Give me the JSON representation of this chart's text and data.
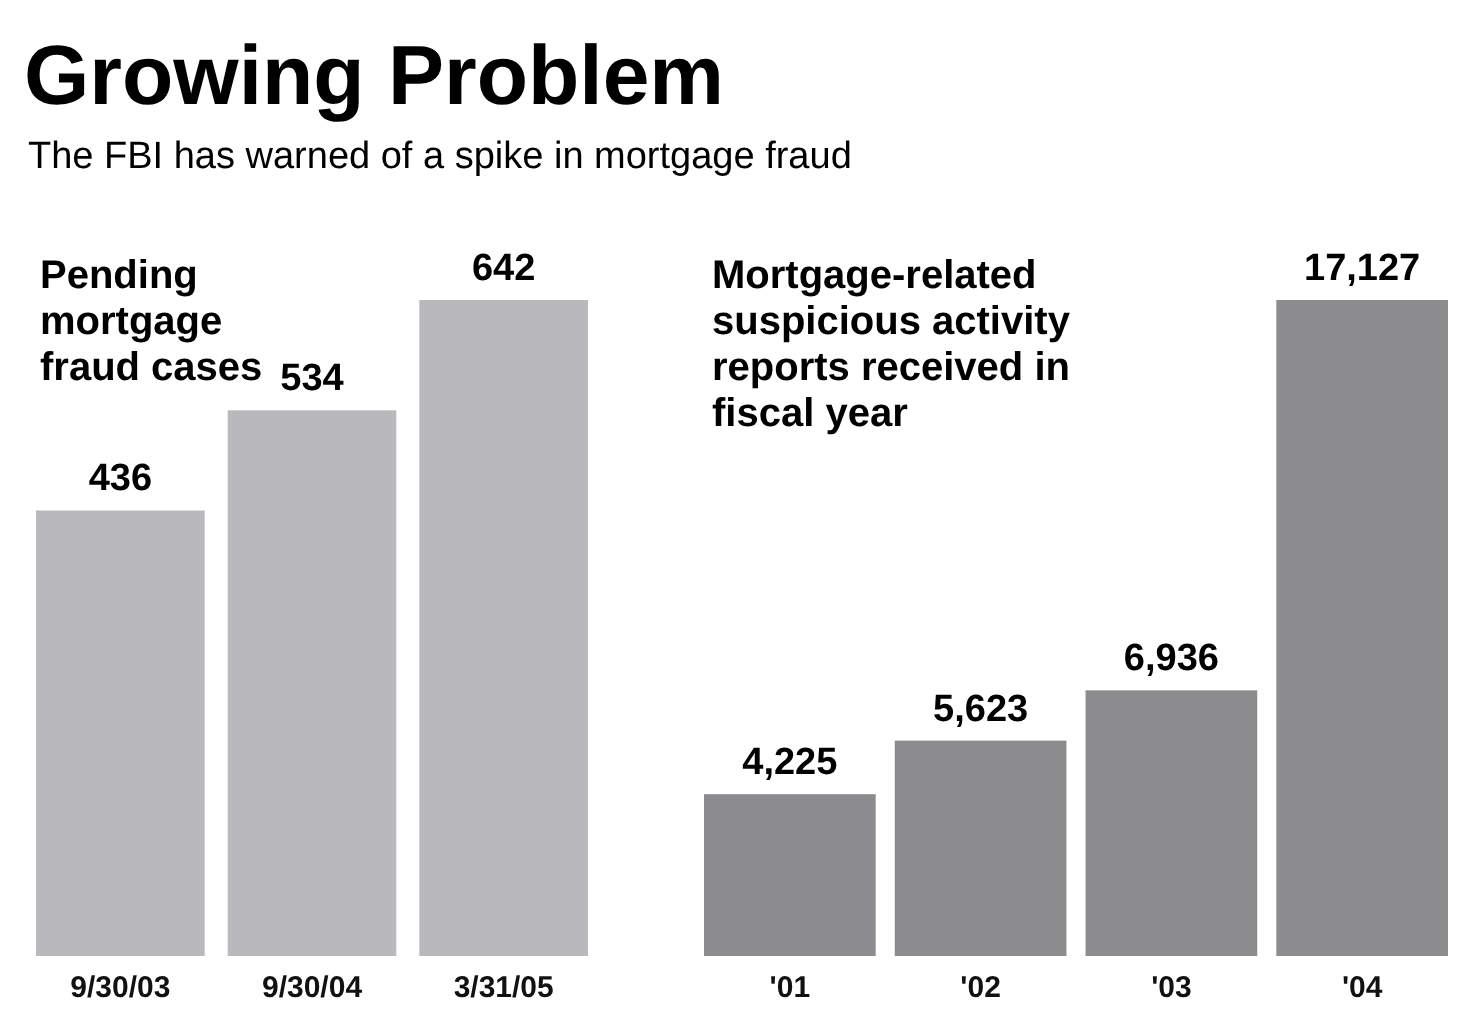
{
  "chart_data": [
    {
      "type": "other",
      "title": "Growing Problem",
      "subtitle": "The FBI has warned of a spike in mortgage fraud"
    },
    {
      "type": "bar",
      "title": "Pending mortgage fraud cases",
      "categories": [
        "9/30/03",
        "9/30/04",
        "3/31/05"
      ],
      "values": [
        436,
        534,
        642
      ],
      "color": "#b9b9bb",
      "data_labels": true,
      "tick_labels": "x"
    },
    {
      "type": "bar",
      "title": "Mortgage-related suspicious activity reports received in fiscal year",
      "categories": [
        "'01",
        "'02",
        "'03",
        "'04"
      ],
      "values": [
        4225,
        5623,
        6936,
        17127
      ],
      "value_labels": [
        "4,225",
        "5,623",
        "6,936",
        "17,127"
      ],
      "color": "#8c8c8e",
      "tick_labels": "x"
    }
  ]
}
